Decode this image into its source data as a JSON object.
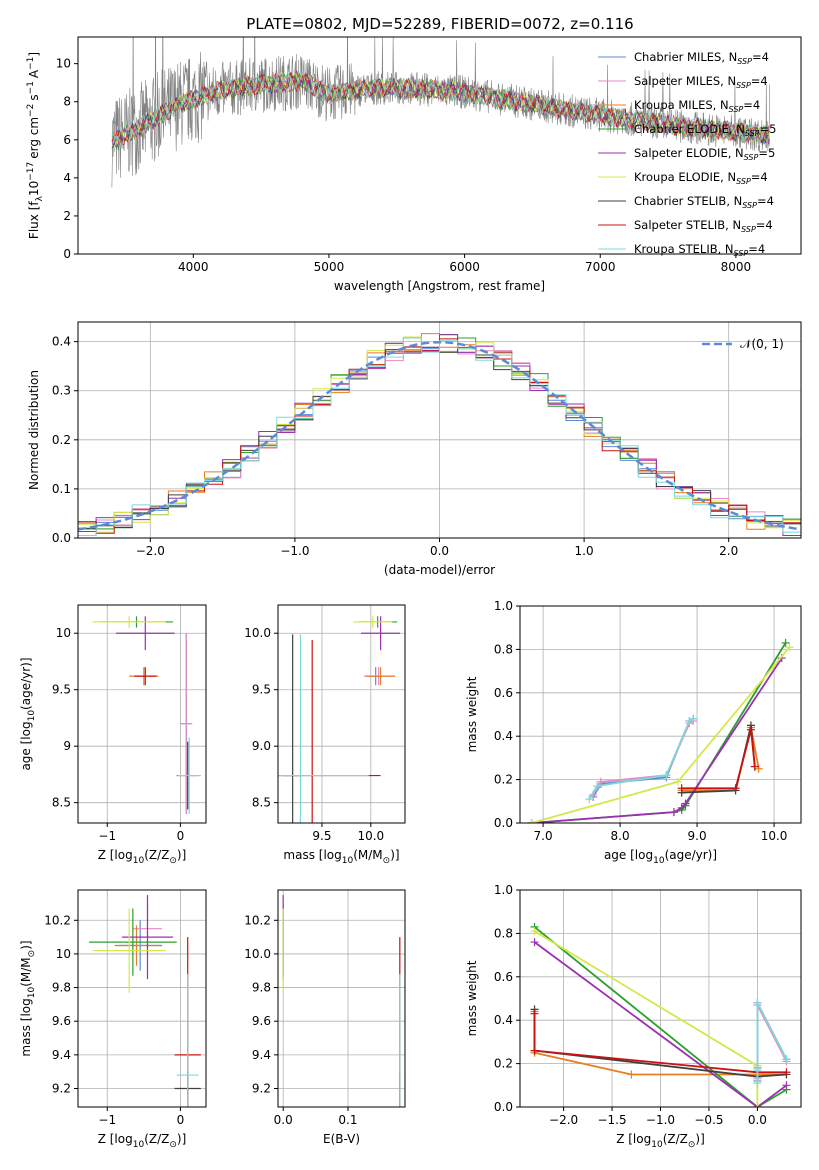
{
  "figure": {
    "title": "PLATE=0802, MJD=52289, FIBERID=0072, z=0.116"
  },
  "models": [
    {
      "name": "Chabrier MILES",
      "nssp": "4",
      "color": "#5b8bd8"
    },
    {
      "name": "Salpeter MILES",
      "nssp": "4",
      "color": "#e78ac3"
    },
    {
      "name": "Kroupa MILES",
      "nssp": "4",
      "color": "#e67e22"
    },
    {
      "name": "Chabrier ELODIE",
      "nssp": "5",
      "color": "#2ca02c"
    },
    {
      "name": "Salpeter ELODIE",
      "nssp": "5",
      "color": "#9b30b0"
    },
    {
      "name": "Kroupa ELODIE",
      "nssp": "4",
      "color": "#d4e84a"
    },
    {
      "name": "Chabrier STELIB",
      "nssp": "4",
      "color": "#404040"
    },
    {
      "name": "Salpeter STELIB",
      "nssp": "4",
      "color": "#cc1111"
    },
    {
      "name": "Kroupa STELIB",
      "nssp": "4",
      "color": "#7fd8d8"
    }
  ],
  "chart_data": [
    {
      "id": "spectrum",
      "type": "line",
      "xlabel": "wavelength [Angstrom, rest frame]",
      "ylabel": "Flux [f",
      "ylabel_sub": "λ",
      "ylabel_rest": "10",
      "ylabel_exp": "−17",
      "ylabel_units": "erg cm",
      "ylabel_units_exp": "−2",
      "ylabel_units2": "s",
      "ylabel_units2_exp": "−1",
      "ylabel_units3": "A",
      "ylabel_units3_exp": "−1",
      "ylabel_close": "]",
      "xlim": [
        3150,
        8480
      ],
      "ylim": [
        0,
        11.4
      ],
      "xticks": [
        4000,
        5000,
        6000,
        7000,
        8000
      ],
      "yticks": [
        0,
        2,
        4,
        6,
        8,
        10
      ],
      "data_color": "#808080",
      "data_range": [
        3400,
        8250
      ],
      "model_range": [
        3400,
        8250
      ],
      "continuum_x": [
        3400,
        3600,
        3900,
        4200,
        4500,
        4800,
        5000,
        5300,
        5600,
        6000,
        6400,
        6800,
        7200,
        7600,
        8000,
        8250
      ],
      "continuum_y": [
        5.9,
        6.6,
        7.9,
        8.6,
        8.9,
        9.1,
        8.4,
        8.7,
        8.7,
        8.5,
        8.0,
        7.5,
        7.1,
        6.7,
        6.4,
        6.2
      ],
      "legend": "upper right"
    },
    {
      "id": "residuals",
      "type": "step",
      "xlabel": "(data-model)/error",
      "ylabel": "Normed distribution",
      "xlim": [
        -2.5,
        2.5
      ],
      "ylim": [
        0,
        0.44
      ],
      "xticks": [
        -2,
        -1,
        0,
        1,
        2
      ],
      "yticks": [
        0.0,
        0.1,
        0.2,
        0.3,
        0.4
      ],
      "gaussian_label": "𝒩(0, 1)",
      "gaussian_color": "#5b8bd8",
      "bins": 40,
      "grid": true,
      "legend": "upper right"
    },
    {
      "id": "age-vs-Z",
      "type": "errorbar",
      "xlabel": "Z [log",
      "xlabel_sub": "10",
      "xlabel_rest": "(Z/Z",
      "xlabel_sun": "⊙",
      "xlabel_close": ")]",
      "ylabel": "age  [log",
      "ylabel_sub": "10",
      "ylabel_rest": "(age/yr)]",
      "xlim": [
        -1.4,
        0.35
      ],
      "ylim": [
        8.32,
        10.25
      ],
      "xticks": [
        -1,
        0
      ],
      "yticks": [
        8.5,
        9.0,
        9.5,
        10.0
      ],
      "points": [
        {
          "m": 0,
          "x": 0.08,
          "y": 9.2,
          "xe": 0.08,
          "ye": 0.8
        },
        {
          "m": 1,
          "x": 0.08,
          "y": 9.2,
          "xe": 0.08,
          "ye": 0.8
        },
        {
          "m": 2,
          "x": -0.5,
          "y": 9.62,
          "xe": 0.2,
          "ye": 0.08
        },
        {
          "m": 3,
          "x": -0.6,
          "y": 10.1,
          "xe": 0.5,
          "ye": 0.05
        },
        {
          "m": 4,
          "x": -0.48,
          "y": 10.0,
          "xe": 0.4,
          "ye": 0.15
        },
        {
          "m": 5,
          "x": -0.7,
          "y": 10.1,
          "xe": 0.5,
          "ye": 0.05
        },
        {
          "m": 6,
          "x": 0.1,
          "y": 8.74,
          "xe": 0.15,
          "ye": 0.3
        },
        {
          "m": 7,
          "x": -0.48,
          "y": 9.62,
          "xe": 0.15,
          "ye": 0.08
        },
        {
          "m": 8,
          "x": 0.12,
          "y": 8.74,
          "xe": 0.16,
          "ye": 0.34
        }
      ]
    },
    {
      "id": "age-vs-mass",
      "type": "errorbar",
      "xlabel": "mass [log",
      "xlabel_sub": "10",
      "xlabel_rest": "(M/M",
      "xlabel_sun": "⊙",
      "xlabel_close": ")]",
      "xlim": [
        9.05,
        10.35
      ],
      "ylim": [
        8.32,
        10.25
      ],
      "xticks": [
        9.5,
        10.0
      ],
      "yticks": [
        8.5,
        9.0,
        9.5,
        10.0
      ],
      "points": [
        {
          "m": 0,
          "x": 10.05,
          "y": 9.62,
          "xe": 0.1,
          "ye": 0.08
        },
        {
          "m": 1,
          "x": 10.08,
          "y": 9.62,
          "xe": 0.15,
          "ye": 0.08
        },
        {
          "m": 2,
          "x": 10.1,
          "y": 9.62,
          "xe": 0.15,
          "ye": 0.08
        },
        {
          "m": 3,
          "x": 10.07,
          "y": 10.1,
          "xe": 0.2,
          "ye": 0.05
        },
        {
          "m": 4,
          "x": 10.1,
          "y": 10.0,
          "xe": 0.2,
          "ye": 0.15
        },
        {
          "m": 5,
          "x": 10.02,
          "y": 10.1,
          "xe": 0.2,
          "ye": 0.05
        },
        {
          "m": 6,
          "x": 9.2,
          "y": 8.74,
          "xe": 0.1,
          "ye": 1.25
        },
        {
          "m": 7,
          "x": 9.4,
          "y": 8.74,
          "xe": 0.7,
          "ye": 1.2
        },
        {
          "m": 8,
          "x": 9.28,
          "y": 8.74,
          "xe": 0.7,
          "ye": 1.25
        }
      ]
    },
    {
      "id": "massweight-vs-age",
      "type": "line",
      "xlabel": "age  [log",
      "xlabel_sub": "10",
      "xlabel_rest": "(age/yr)]",
      "ylabel": "mass weight",
      "xlim": [
        6.7,
        10.35
      ],
      "ylim": [
        0,
        1.0
      ],
      "xticks": [
        7,
        8,
        9,
        10
      ],
      "yticks": [
        0.0,
        0.2,
        0.4,
        0.6,
        0.8,
        1.0
      ],
      "series": [
        {
          "m": 0,
          "x": [
            7.65,
            7.75,
            8.6,
            8.9,
            8.95
          ],
          "y": [
            0.12,
            0.18,
            0.21,
            0.47,
            0.48
          ]
        },
        {
          "m": 1,
          "x": [
            7.65,
            7.75,
            8.6,
            8.9,
            8.95
          ],
          "y": [
            0.13,
            0.19,
            0.22,
            0.46,
            0.47
          ]
        },
        {
          "m": 2,
          "x": [
            8.8,
            9.5,
            9.7,
            9.8
          ],
          "y": [
            0.15,
            0.15,
            0.44,
            0.25
          ]
        },
        {
          "m": 3,
          "x": [
            6.85,
            8.7,
            8.8,
            8.85,
            10.15
          ],
          "y": [
            0.0,
            0.05,
            0.06,
            0.08,
            0.83
          ]
        },
        {
          "m": 4,
          "x": [
            6.85,
            8.7,
            8.8,
            8.85,
            10.1
          ],
          "y": [
            0.0,
            0.05,
            0.07,
            0.09,
            0.76
          ]
        },
        {
          "m": 5,
          "x": [
            6.85,
            8.75,
            10.2
          ],
          "y": [
            0.0,
            0.19,
            0.81
          ]
        },
        {
          "m": 6,
          "x": [
            8.8,
            9.5,
            9.7,
            9.75
          ],
          "y": [
            0.14,
            0.15,
            0.45,
            0.26
          ]
        },
        {
          "m": 7,
          "x": [
            8.8,
            9.5,
            9.7,
            9.75
          ],
          "y": [
            0.16,
            0.16,
            0.43,
            0.26
          ]
        },
        {
          "m": 8,
          "x": [
            7.6,
            7.7,
            8.6,
            8.9,
            8.95
          ],
          "y": [
            0.11,
            0.17,
            0.22,
            0.47,
            0.48
          ]
        }
      ]
    },
    {
      "id": "mass-vs-Z",
      "type": "errorbar",
      "xlabel": "Z [log",
      "xlabel_sub": "10",
      "xlabel_rest": "(Z/Z",
      "xlabel_sun": "⊙",
      "xlabel_close": ")]",
      "ylabel": "mass [log",
      "ylabel_sub": "10",
      "ylabel_rest": "(M/M",
      "ylabel_sun": "⊙",
      "ylabel_close": ")]",
      "xlim": [
        -1.4,
        0.35
      ],
      "ylim": [
        9.09,
        10.38
      ],
      "xticks": [
        -1,
        0
      ],
      "yticks": [
        9.2,
        9.4,
        9.6,
        9.8,
        10.0,
        10.2
      ],
      "points": [
        {
          "m": 0,
          "x": -0.55,
          "y": 10.05,
          "xe": 0.3,
          "ye": 0.15
        },
        {
          "m": 1,
          "x": -0.45,
          "y": 10.15,
          "xe": 0.2,
          "ye": 0.15
        },
        {
          "m": 2,
          "x": -0.6,
          "y": 10.05,
          "xe": 0.3,
          "ye": 0.12
        },
        {
          "m": 3,
          "x": -0.65,
          "y": 10.07,
          "xe": 0.6,
          "ye": 0.2
        },
        {
          "m": 4,
          "x": -0.45,
          "y": 10.1,
          "xe": 0.35,
          "ye": 0.25
        },
        {
          "m": 5,
          "x": -0.7,
          "y": 10.02,
          "xe": 0.5,
          "ye": 0.25
        },
        {
          "m": 6,
          "x": 0.1,
          "y": 9.2,
          "xe": 0.18,
          "ye": 0.1
        },
        {
          "m": 7,
          "x": 0.1,
          "y": 9.4,
          "xe": 0.18,
          "ye": 0.7
        },
        {
          "m": 8,
          "x": 0.1,
          "y": 9.28,
          "xe": 0.15,
          "ye": 0.6
        }
      ]
    },
    {
      "id": "mass-vs-EBV",
      "type": "errorbar",
      "xlabel": "E(B-V)",
      "xlim": [
        -0.008,
        0.188
      ],
      "ylim": [
        9.09,
        10.38
      ],
      "xticks": [
        0.0,
        0.1
      ],
      "yticks": [
        9.2,
        9.4,
        9.6,
        9.8,
        10.0,
        10.2
      ],
      "points": [
        {
          "m": 0,
          "x": 0.0,
          "y": 10.05,
          "xe": 0.0,
          "ye": 0.15
        },
        {
          "m": 1,
          "x": 0.0,
          "y": 10.15,
          "xe": 0.0,
          "ye": 0.15
        },
        {
          "m": 2,
          "x": 0.0,
          "y": 10.05,
          "xe": 0.0,
          "ye": 0.12
        },
        {
          "m": 3,
          "x": 0.0,
          "y": 10.07,
          "xe": 0.0,
          "ye": 0.2
        },
        {
          "m": 4,
          "x": 0.0,
          "y": 10.1,
          "xe": 0.0,
          "ye": 0.25
        },
        {
          "m": 5,
          "x": 0.0,
          "y": 10.02,
          "xe": 0.0,
          "ye": 0.25
        },
        {
          "m": 6,
          "x": 0.18,
          "y": 9.2,
          "xe": 0.0,
          "ye": 0.1
        },
        {
          "m": 7,
          "x": 0.18,
          "y": 9.4,
          "xe": 0.0,
          "ye": 0.7
        },
        {
          "m": 8,
          "x": 0.18,
          "y": 9.28,
          "xe": 0.0,
          "ye": 0.6
        }
      ]
    },
    {
      "id": "massweight-vs-Z",
      "type": "line",
      "xlabel": "Z [log",
      "xlabel_sub": "10",
      "xlabel_rest": "(Z/Z",
      "xlabel_sun": "⊙",
      "xlabel_close": ")]",
      "ylabel": "mass weight",
      "xlim": [
        -2.45,
        0.45
      ],
      "ylim": [
        0,
        1.0
      ],
      "xticks": [
        -2.0,
        -1.5,
        -1.0,
        -0.5,
        0.0
      ],
      "yticks": [
        0.0,
        0.2,
        0.4,
        0.6,
        0.8,
        1.0
      ],
      "series": [
        {
          "m": 0,
          "x": [
            0.0,
            0.0,
            0.0,
            0.3
          ],
          "y": [
            0.12,
            0.18,
            0.48,
            0.22
          ]
        },
        {
          "m": 1,
          "x": [
            0.0,
            0.0,
            0.0,
            0.3
          ],
          "y": [
            0.13,
            0.19,
            0.47,
            0.21
          ]
        },
        {
          "m": 2,
          "x": [
            -2.3,
            -2.3,
            -2.3,
            -1.3,
            0.3
          ],
          "y": [
            0.44,
            0.26,
            0.25,
            0.15,
            0.15
          ]
        },
        {
          "m": 3,
          "x": [
            -2.3,
            0.0,
            0.3
          ],
          "y": [
            0.83,
            0.0,
            0.08
          ]
        },
        {
          "m": 4,
          "x": [
            -2.3,
            0.0,
            0.3
          ],
          "y": [
            0.76,
            0.0,
            0.1
          ]
        },
        {
          "m": 5,
          "x": [
            -2.3,
            0.0,
            0.0
          ],
          "y": [
            0.81,
            0.19,
            0.0
          ]
        },
        {
          "m": 6,
          "x": [
            -2.3,
            -2.3,
            0.0,
            0.3
          ],
          "y": [
            0.45,
            0.26,
            0.14,
            0.15
          ]
        },
        {
          "m": 7,
          "x": [
            -2.3,
            -2.3,
            0.0,
            0.3
          ],
          "y": [
            0.43,
            0.26,
            0.16,
            0.16
          ]
        },
        {
          "m": 8,
          "x": [
            0.0,
            0.0,
            0.0,
            0.3
          ],
          "y": [
            0.11,
            0.17,
            0.48,
            0.22
          ]
        }
      ]
    }
  ]
}
